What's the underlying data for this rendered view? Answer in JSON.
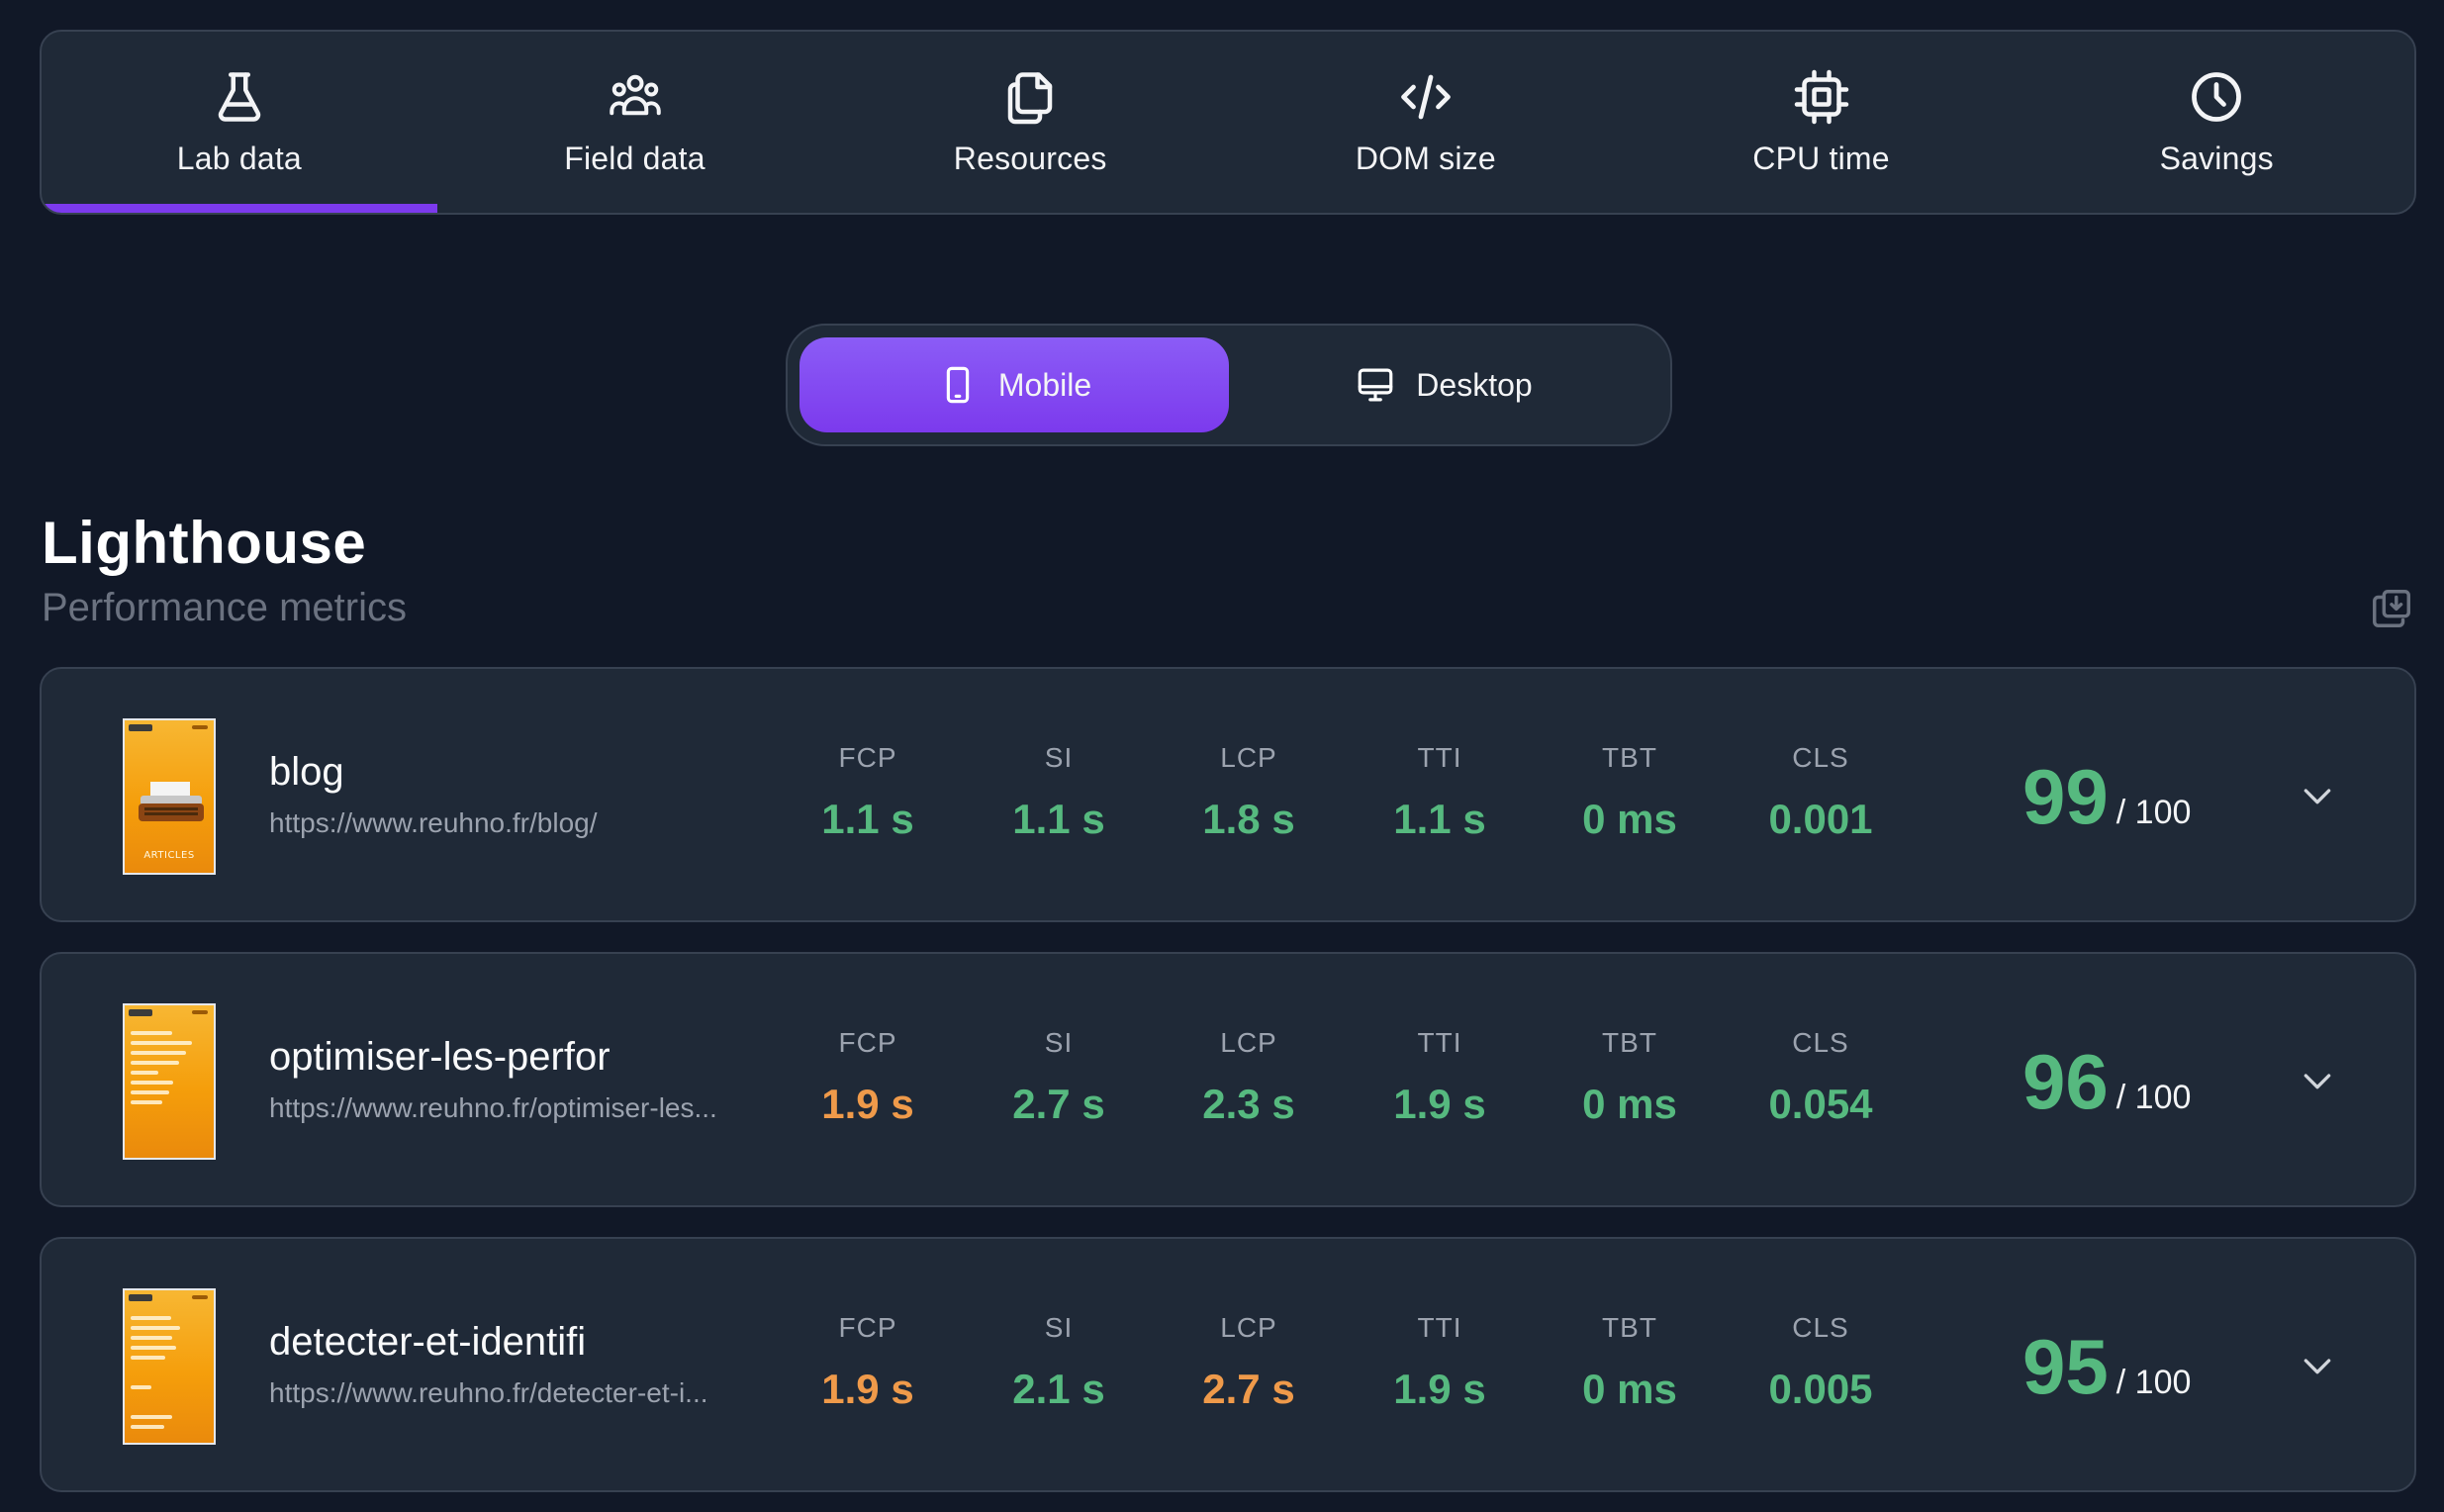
{
  "tabs": [
    {
      "label": "Lab data",
      "icon": "flask-icon",
      "active": true
    },
    {
      "label": "Field data",
      "icon": "users-icon",
      "active": false
    },
    {
      "label": "Resources",
      "icon": "files-icon",
      "active": false
    },
    {
      "label": "DOM size",
      "icon": "code-icon",
      "active": false
    },
    {
      "label": "CPU time",
      "icon": "cpu-icon",
      "active": false
    },
    {
      "label": "Savings",
      "icon": "clock-icon",
      "active": false
    }
  ],
  "device_toggle": {
    "mobile_label": "Mobile",
    "desktop_label": "Desktop",
    "selected": "Mobile"
  },
  "section": {
    "title": "Lighthouse",
    "subtitle": "Performance metrics"
  },
  "colors": {
    "accent": "#7c3aed",
    "good": "#56b97f",
    "average": "#ef9a4a"
  },
  "rows": [
    {
      "name": "blog",
      "url": "https://www.reuhno.fr/blog/",
      "thumbnail_caption": "ARTICLES",
      "metrics": [
        {
          "label": "FCP",
          "value": "1.1 s",
          "status": "good"
        },
        {
          "label": "SI",
          "value": "1.1 s",
          "status": "good"
        },
        {
          "label": "LCP",
          "value": "1.8 s",
          "status": "good"
        },
        {
          "label": "TTI",
          "value": "1.1 s",
          "status": "good"
        },
        {
          "label": "TBT",
          "value": "0 ms",
          "status": "good"
        },
        {
          "label": "CLS",
          "value": "0.001",
          "status": "good"
        }
      ],
      "score": "99",
      "score_max": "/ 100"
    },
    {
      "name": "optimiser-les-perfor",
      "url": "https://www.reuhno.fr/optimiser-les...",
      "thumbnail_caption": "",
      "metrics": [
        {
          "label": "FCP",
          "value": "1.9 s",
          "status": "average"
        },
        {
          "label": "SI",
          "value": "2.7 s",
          "status": "good"
        },
        {
          "label": "LCP",
          "value": "2.3 s",
          "status": "good"
        },
        {
          "label": "TTI",
          "value": "1.9 s",
          "status": "good"
        },
        {
          "label": "TBT",
          "value": "0 ms",
          "status": "good"
        },
        {
          "label": "CLS",
          "value": "0.054",
          "status": "good"
        }
      ],
      "score": "96",
      "score_max": "/ 100"
    },
    {
      "name": "detecter-et-identifi",
      "url": "https://www.reuhno.fr/detecter-et-i...",
      "thumbnail_caption": "",
      "metrics": [
        {
          "label": "FCP",
          "value": "1.9 s",
          "status": "average"
        },
        {
          "label": "SI",
          "value": "2.1 s",
          "status": "good"
        },
        {
          "label": "LCP",
          "value": "2.7 s",
          "status": "average"
        },
        {
          "label": "TTI",
          "value": "1.9 s",
          "status": "good"
        },
        {
          "label": "TBT",
          "value": "0 ms",
          "status": "good"
        },
        {
          "label": "CLS",
          "value": "0.005",
          "status": "good"
        }
      ],
      "score": "95",
      "score_max": "/ 100"
    }
  ]
}
